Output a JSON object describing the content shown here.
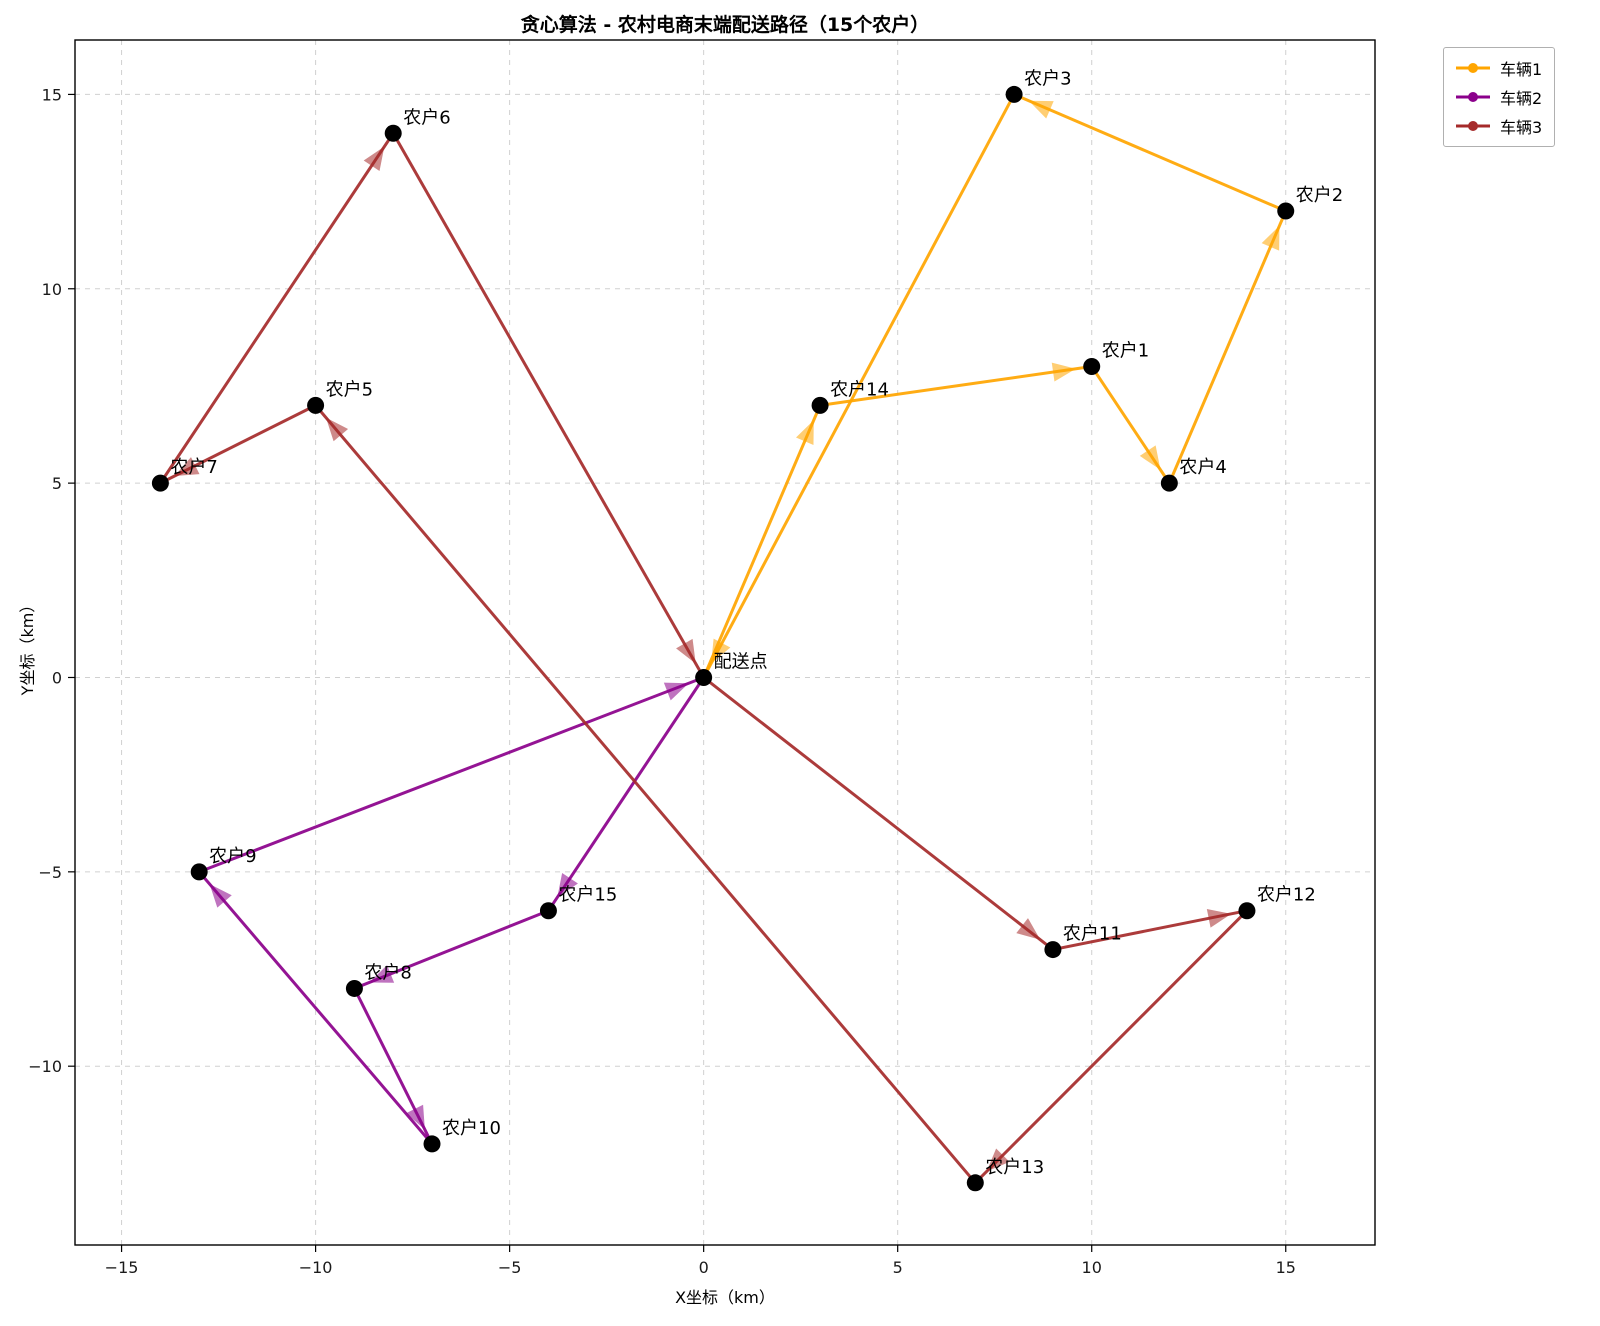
{
  "chart_data": {
    "type": "scatter",
    "title": "贪心算法 - 农村电商末端配送路径（15个农户）",
    "xlabel": "X坐标（km）",
    "ylabel": "Y坐标（km）",
    "xlim": [
      -16.2,
      17.3
    ],
    "ylim": [
      -14.6,
      16.4
    ],
    "xticks": [
      -15,
      -10,
      -5,
      0,
      5,
      10,
      15
    ],
    "yticks": [
      -10,
      -5,
      0,
      5,
      10,
      15
    ],
    "grid": true,
    "legend_position": "upper-right-outside",
    "marker_color": "#000000",
    "depot": {
      "id": "depot",
      "label": "配送点",
      "x": 0,
      "y": 0
    },
    "farmers": [
      {
        "id": "farmer-1",
        "label": "农户1",
        "x": 10,
        "y": 8
      },
      {
        "id": "farmer-2",
        "label": "农户2",
        "x": 15,
        "y": 12
      },
      {
        "id": "farmer-3",
        "label": "农户3",
        "x": 8,
        "y": 15
      },
      {
        "id": "farmer-4",
        "label": "农户4",
        "x": 12,
        "y": 5
      },
      {
        "id": "farmer-5",
        "label": "农户5",
        "x": -10,
        "y": 7
      },
      {
        "id": "farmer-6",
        "label": "农户6",
        "x": -8,
        "y": 14
      },
      {
        "id": "farmer-7",
        "label": "农户7",
        "x": -14,
        "y": 5
      },
      {
        "id": "farmer-8",
        "label": "农户8",
        "x": -9,
        "y": -8
      },
      {
        "id": "farmer-9",
        "label": "农户9",
        "x": -13,
        "y": -5
      },
      {
        "id": "farmer-10",
        "label": "农户10",
        "x": -7,
        "y": -12
      },
      {
        "id": "farmer-11",
        "label": "农户11",
        "x": 9,
        "y": -7
      },
      {
        "id": "farmer-12",
        "label": "农户12",
        "x": 14,
        "y": -6
      },
      {
        "id": "farmer-13",
        "label": "农户13",
        "x": 7,
        "y": -13
      },
      {
        "id": "farmer-14",
        "label": "农户14",
        "x": 3,
        "y": 7
      },
      {
        "id": "farmer-15",
        "label": "农户15",
        "x": -4,
        "y": -6
      }
    ],
    "routes": [
      {
        "id": "vehicle-1",
        "label": "车辆1",
        "color": "#FFA500",
        "stops": [
          "配送点",
          "农户14",
          "农户1",
          "农户4",
          "农户2",
          "农户3",
          "配送点"
        ]
      },
      {
        "id": "vehicle-2",
        "label": "车辆2",
        "color": "#8B008B",
        "stops": [
          "配送点",
          "农户15",
          "农户8",
          "农户10",
          "农户9",
          "配送点"
        ]
      },
      {
        "id": "vehicle-3",
        "label": "车辆3",
        "color": "#A52A2A",
        "stops": [
          "配送点",
          "农户11",
          "农户12",
          "农户13",
          "农户5",
          "农户7",
          "农户6",
          "配送点"
        ]
      }
    ]
  }
}
